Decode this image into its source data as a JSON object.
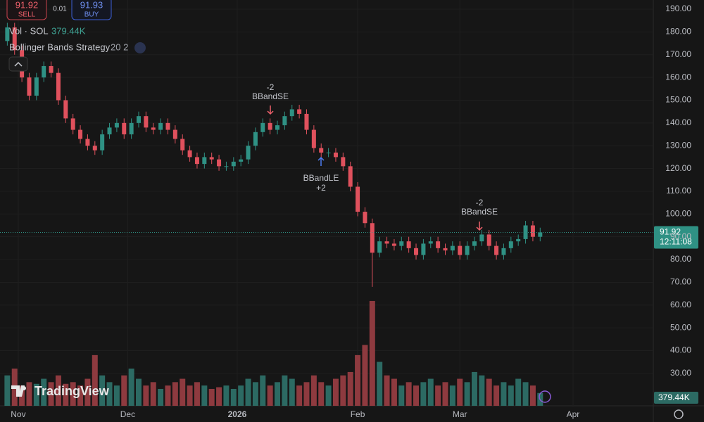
{
  "header": {
    "sell_price": 91.92,
    "sell_label": "SELL",
    "spread": 0.01,
    "buy_price": 91.93,
    "buy_label": "BUY",
    "volume_title": "Vol · SOL",
    "indicator_title": "Bollinger Bands Strategy",
    "indicator_params": "20 2",
    "logo": "TradingView"
  },
  "signals": [
    {
      "qty": "-2",
      "label": "BBandSE"
    },
    {
      "label": "BBandLE",
      "qty": "+2"
    },
    {
      "qty": "-2",
      "label": "BBandSE"
    }
  ],
  "chart_data": {
    "type": "candlestick",
    "x": [
      0,
      2,
      4,
      6,
      8,
      10,
      12,
      14,
      16,
      18,
      20,
      22,
      24,
      26,
      28,
      30,
      32,
      34,
      36,
      38,
      40,
      42,
      44,
      46,
      48,
      50,
      52,
      54,
      56,
      58,
      60,
      62,
      64,
      66,
      68,
      70,
      72,
      74,
      76,
      78,
      80,
      82,
      84,
      86,
      88,
      90,
      92,
      94,
      96,
      98,
      100,
      102,
      104,
      106,
      108,
      110,
      112,
      114,
      116,
      118,
      120,
      122,
      124,
      126,
      128,
      130,
      132,
      134,
      136,
      138,
      140,
      142,
      144,
      146
    ],
    "open": [
      176,
      182,
      172,
      160,
      152,
      160,
      165,
      162,
      150,
      142,
      137,
      133,
      130,
      128,
      135,
      138,
      140,
      135,
      140,
      143,
      138,
      137,
      140,
      137,
      133,
      128,
      125,
      122,
      125,
      124,
      121,
      121,
      123,
      124,
      130,
      136,
      140,
      137,
      139,
      143,
      146,
      144,
      137,
      129,
      127,
      127,
      125,
      121,
      112,
      101,
      96,
      83,
      88,
      87,
      86,
      88,
      85,
      82,
      87,
      88,
      85,
      84,
      86,
      82,
      86,
      88,
      91,
      86,
      82,
      85,
      88,
      89,
      95,
      90
    ],
    "high": [
      184,
      184,
      174,
      162,
      162,
      167,
      167,
      164,
      152,
      144,
      139,
      135,
      132,
      137,
      140,
      142,
      142,
      142,
      145,
      145,
      140,
      142,
      142,
      139,
      135,
      130,
      127,
      127,
      127,
      126,
      123,
      125,
      126,
      132,
      138,
      142,
      142,
      141,
      145,
      148,
      148,
      146,
      139,
      131,
      129,
      129,
      127,
      123,
      114,
      103,
      98,
      90,
      90,
      89,
      90,
      90,
      87,
      89,
      90,
      90,
      87,
      88,
      88,
      88,
      90,
      93,
      93,
      88,
      87,
      90,
      91,
      97,
      97,
      94
    ],
    "low": [
      174,
      170,
      158,
      150,
      150,
      158,
      160,
      148,
      140,
      135,
      131,
      128,
      126,
      126,
      133,
      136,
      133,
      133,
      138,
      136,
      135,
      135,
      135,
      131,
      126,
      123,
      120,
      120,
      122,
      119,
      119,
      119,
      121,
      122,
      128,
      134,
      135,
      135,
      137,
      141,
      142,
      135,
      127,
      125,
      125,
      123,
      119,
      110,
      99,
      94,
      68,
      81,
      85,
      84,
      84,
      83,
      80,
      80,
      85,
      83,
      82,
      82,
      80,
      80,
      84,
      86,
      84,
      80,
      80,
      83,
      86,
      87,
      88,
      88
    ],
    "close": [
      182,
      172,
      160,
      152,
      160,
      165,
      162,
      150,
      142,
      137,
      133,
      130,
      128,
      135,
      138,
      140,
      135,
      140,
      143,
      138,
      137,
      140,
      137,
      133,
      128,
      125,
      122,
      125,
      124,
      121,
      121,
      123,
      124,
      130,
      136,
      140,
      137,
      139,
      143,
      146,
      144,
      137,
      129,
      127,
      127,
      125,
      121,
      112,
      101,
      96,
      83,
      88,
      87,
      86,
      88,
      85,
      82,
      87,
      88,
      85,
      84,
      86,
      82,
      86,
      88,
      91,
      86,
      82,
      85,
      88,
      89,
      95,
      90,
      91.92
    ],
    "volume": [
      900000,
      1100000,
      600000,
      700000,
      650000,
      800000,
      700000,
      900000,
      650000,
      700000,
      600000,
      800000,
      1500000,
      900000,
      700000,
      600000,
      900000,
      1100000,
      800000,
      600000,
      700000,
      500000,
      600000,
      700000,
      800000,
      600000,
      700000,
      600000,
      500000,
      550000,
      600000,
      500000,
      600000,
      800000,
      700000,
      900000,
      600000,
      700000,
      900000,
      800000,
      600000,
      700000,
      900000,
      700000,
      600000,
      800000,
      900000,
      1000000,
      1500000,
      1800000,
      3100000,
      1300000,
      900000,
      800000,
      600000,
      700000,
      600000,
      700000,
      800000,
      600000,
      700000,
      600000,
      800000,
      700000,
      1000000,
      900000,
      800000,
      600000,
      700000,
      600000,
      800000,
      700000,
      600000,
      379440
    ],
    "up_color": "#2f9184",
    "down_color": "#e0515d",
    "up_volume_color": "#2c6a63",
    "down_volume_color": "#8e3a3f",
    "xlim": [
      -2,
      177
    ],
    "xticks": [
      {
        "value": 3,
        "label": "Nov"
      },
      {
        "value": 33,
        "label": "Dec"
      },
      {
        "value": 63,
        "label": "2026"
      },
      {
        "value": 96,
        "label": "Feb"
      },
      {
        "value": 124,
        "label": "Mar"
      },
      {
        "value": 155,
        "label": "Apr"
      }
    ],
    "ylim": [
      15.74,
      194.03
    ],
    "yticks": [
      {
        "value": 30,
        "label": "30.00"
      },
      {
        "value": 40,
        "label": "40.00"
      },
      {
        "value": 50,
        "label": "50.00"
      },
      {
        "value": 60,
        "label": "60.00"
      },
      {
        "value": 70,
        "label": "70.00"
      },
      {
        "value": 80,
        "label": "80.00"
      },
      {
        "value": 90,
        "label": "90.00"
      },
      {
        "value": 100,
        "label": "100.00"
      },
      {
        "value": 110,
        "label": "110.00"
      },
      {
        "value": 120,
        "label": "120.00"
      },
      {
        "value": 130,
        "label": "130.00"
      },
      {
        "value": 140,
        "label": "140.00"
      },
      {
        "value": 150,
        "label": "150.00"
      },
      {
        "value": 160,
        "label": "160.00"
      },
      {
        "value": 170,
        "label": "170.00"
      },
      {
        "value": 180,
        "label": "180.00"
      },
      {
        "value": 190,
        "label": "190.00"
      }
    ],
    "volume_ylim": [
      0,
      12000000
    ],
    "grid": true,
    "last_price": 91.92,
    "countdown": "12:11:08",
    "volume_last": {
      "value": 379440,
      "label": "379.44K"
    }
  }
}
